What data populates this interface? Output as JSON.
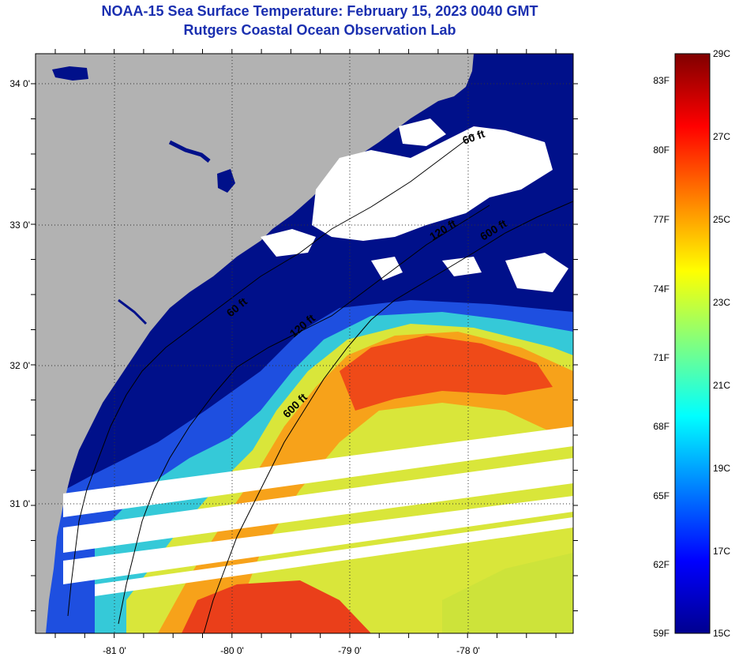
{
  "header": {
    "title": "NOAA-15 Sea Surface Temperature:  February 15, 2023 0040 GMT",
    "subtitle": "Rutgers Coastal Ocean Observation Lab"
  },
  "map": {
    "lon_labels": [
      "-81 0'",
      "-80 0'",
      "-79 0'",
      "-78 0'"
    ],
    "lat_labels": [
      "34 0'",
      "33 0'",
      "32 0'",
      "31 0'"
    ],
    "contours": [
      {
        "label": "60 ft",
        "depth_ft": 60
      },
      {
        "label": "120 ft",
        "depth_ft": 120
      },
      {
        "label": "600 ft",
        "depth_ft": 600
      },
      {
        "label": "60 ft",
        "depth_ft": 60
      },
      {
        "label": "120 ft",
        "depth_ft": 120
      },
      {
        "label": "600 ft",
        "depth_ft": 600
      }
    ],
    "colors": {
      "land": "#b2b2b2",
      "cloud": "#ffffff",
      "cold_water": "#00108a"
    }
  },
  "colorbar": {
    "f_labels": [
      "83F",
      "80F",
      "77F",
      "74F",
      "71F",
      "68F",
      "65F",
      "62F",
      "59F"
    ],
    "c_labels": [
      "29C",
      "27C",
      "25C",
      "23C",
      "21C",
      "19C",
      "17C",
      "15C"
    ],
    "colors": [
      "#00008f",
      "#0000ff",
      "#0080ff",
      "#00ffff",
      "#80ff80",
      "#ffff00",
      "#ff8000",
      "#ff0000",
      "#800000"
    ]
  }
}
